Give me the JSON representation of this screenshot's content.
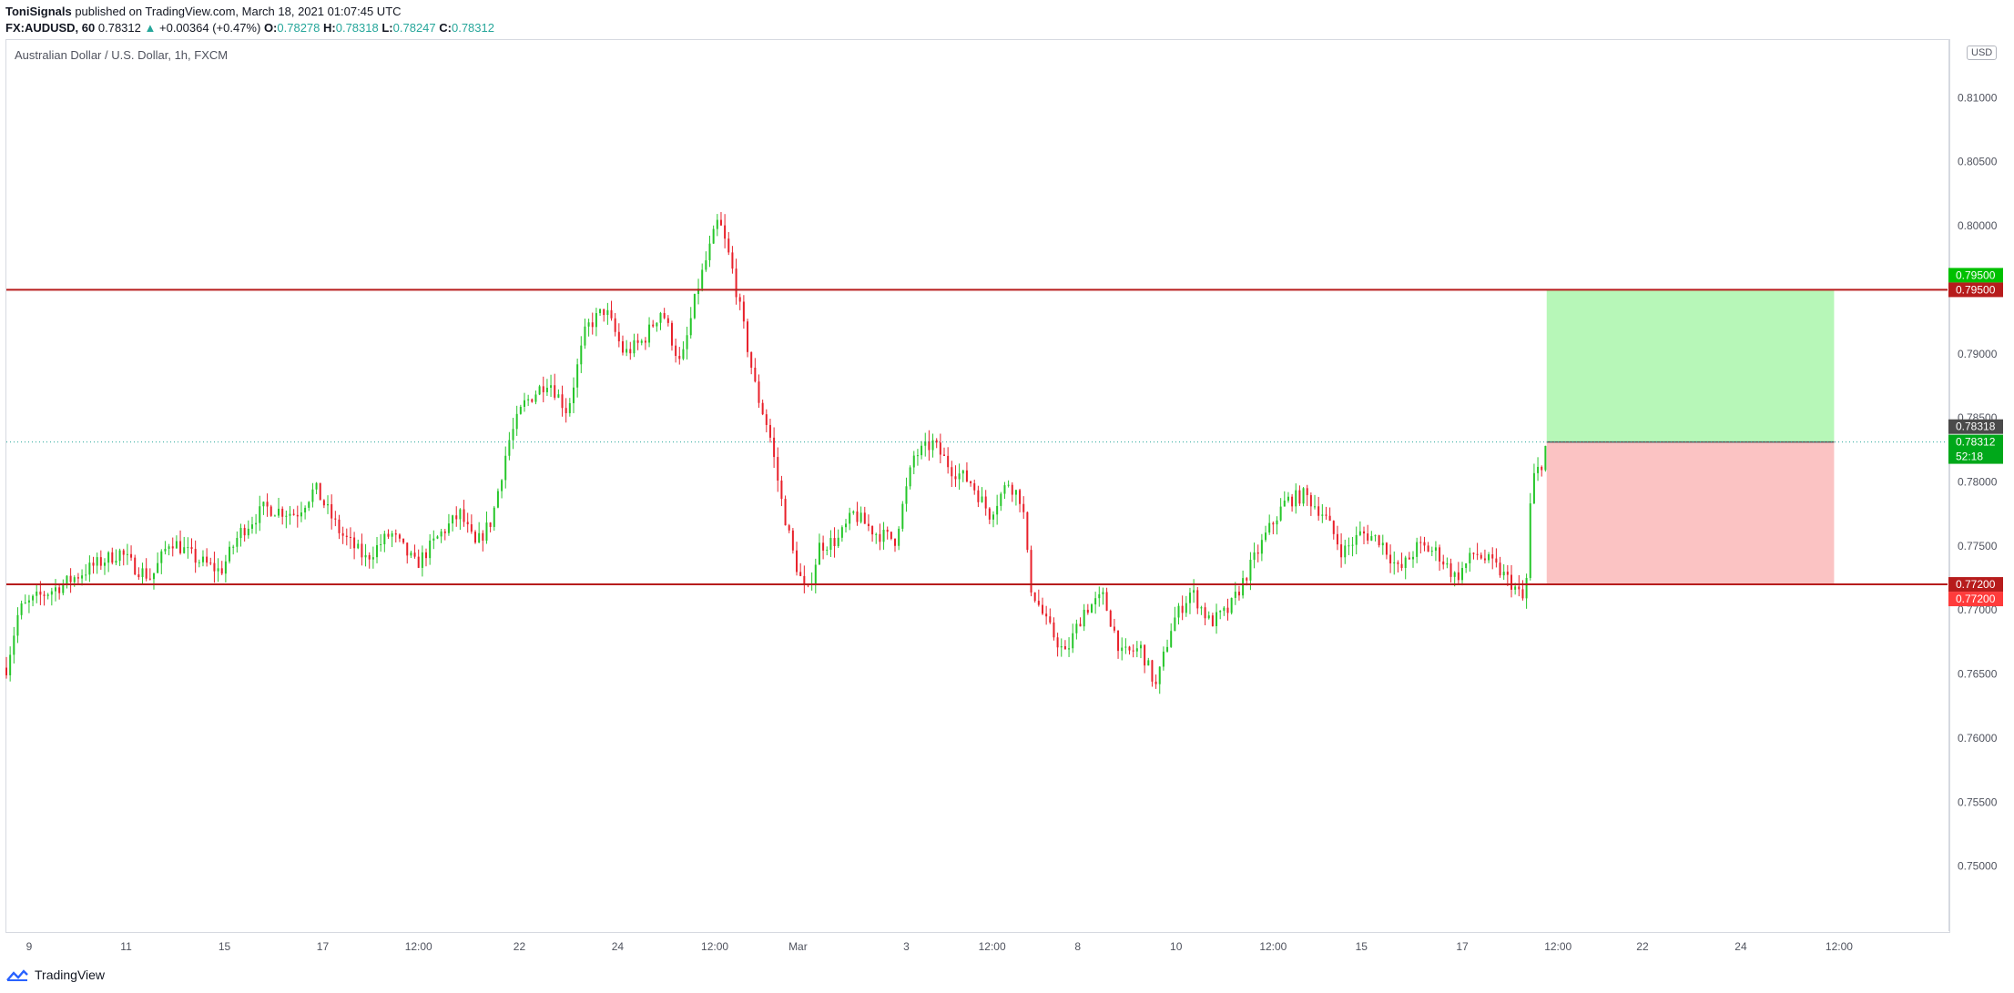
{
  "header": {
    "user": "ToniSignals",
    "published": " published on TradingView.com, March 18, 2021 01:07:45 UTC",
    "symbol": "FX:AUDUSD, 60",
    "last": "0.78312",
    "change": "+0.00364 (+0.47%)",
    "o_label": "O:",
    "o_val": "0.78278",
    "h_label": "H:",
    "h_val": "0.78318",
    "l_label": "L:",
    "l_val": "0.78247",
    "c_label": "C:",
    "c_val": "0.78312"
  },
  "chart_title": "Australian Dollar / U.S. Dollar, 1h, FXCM",
  "currency_button": "USD",
  "footer": {
    "brand": "TradingView"
  },
  "colors": {
    "up": "#26c62a",
    "down": "#e8202a",
    "line": "#b71c1c",
    "target_zone": "#b7f7b8",
    "stop_zone": "#fbc3c3"
  },
  "chart_data": {
    "type": "candlestick",
    "title": "Australian Dollar / U.S. Dollar, 1h, FXCM",
    "ylim": [
      0.745,
      0.8145
    ],
    "y_ticks": [
      "0.81000",
      "0.80500",
      "0.80000",
      "0.79500",
      "0.79000",
      "0.78500",
      "0.78000",
      "0.77500",
      "0.77000",
      "0.76500",
      "0.76000",
      "0.75500",
      "0.75000"
    ],
    "y_tick_values": [
      0.81,
      0.805,
      0.8,
      0.795,
      0.79,
      0.785,
      0.78,
      0.775,
      0.77,
      0.765,
      0.76,
      0.755,
      0.75
    ],
    "x_ticks": [
      "9",
      "11",
      "15",
      "17",
      "12:00",
      "22",
      "24",
      "12:00",
      "Mar",
      "3",
      "12:00",
      "8",
      "10",
      "12:00",
      "15",
      "17",
      "12:00",
      "22",
      "24",
      "12:00"
    ],
    "x_tick_index": [
      18,
      95,
      173,
      251,
      327,
      407,
      485,
      562,
      628,
      714,
      782,
      850,
      928,
      1005,
      1075,
      1155,
      1231,
      1298,
      1376,
      1454
    ],
    "price_path": [
      [
        0,
        0.7655
      ],
      [
        10,
        0.77
      ],
      [
        25,
        0.771
      ],
      [
        45,
        0.772
      ],
      [
        70,
        0.7735
      ],
      [
        90,
        0.7745
      ],
      [
        100,
        0.7735
      ],
      [
        115,
        0.7725
      ],
      [
        130,
        0.7755
      ],
      [
        150,
        0.774
      ],
      [
        170,
        0.773
      ],
      [
        185,
        0.776
      ],
      [
        205,
        0.778
      ],
      [
        230,
        0.7775
      ],
      [
        245,
        0.7795
      ],
      [
        265,
        0.776
      ],
      [
        285,
        0.774
      ],
      [
        305,
        0.776
      ],
      [
        325,
        0.7735
      ],
      [
        345,
        0.776
      ],
      [
        360,
        0.7775
      ],
      [
        372,
        0.775
      ],
      [
        385,
        0.777
      ],
      [
        398,
        0.783
      ],
      [
        410,
        0.786
      ],
      [
        430,
        0.788
      ],
      [
        445,
        0.7855
      ],
      [
        460,
        0.792
      ],
      [
        475,
        0.7935
      ],
      [
        490,
        0.79
      ],
      [
        505,
        0.791
      ],
      [
        520,
        0.7935
      ],
      [
        535,
        0.789
      ],
      [
        548,
        0.795
      ],
      [
        565,
        0.8005
      ],
      [
        575,
        0.797
      ],
      [
        585,
        0.792
      ],
      [
        595,
        0.787
      ],
      [
        605,
        0.784
      ],
      [
        615,
        0.7785
      ],
      [
        625,
        0.774
      ],
      [
        635,
        0.771
      ],
      [
        645,
        0.775
      ],
      [
        660,
        0.7755
      ],
      [
        672,
        0.7775
      ],
      [
        690,
        0.776
      ],
      [
        705,
        0.7755
      ],
      [
        720,
        0.782
      ],
      [
        735,
        0.783
      ],
      [
        750,
        0.781
      ],
      [
        765,
        0.78
      ],
      [
        780,
        0.7775
      ],
      [
        795,
        0.78
      ],
      [
        806,
        0.7785
      ],
      [
        812,
        0.772
      ],
      [
        825,
        0.769
      ],
      [
        840,
        0.7665
      ],
      [
        855,
        0.77
      ],
      [
        870,
        0.771
      ],
      [
        885,
        0.7665
      ],
      [
        900,
        0.767
      ],
      [
        912,
        0.764
      ],
      [
        925,
        0.769
      ],
      [
        940,
        0.7715
      ],
      [
        955,
        0.769
      ],
      [
        970,
        0.77
      ],
      [
        985,
        0.773
      ],
      [
        1000,
        0.776
      ],
      [
        1015,
        0.7785
      ],
      [
        1030,
        0.779
      ],
      [
        1045,
        0.7775
      ],
      [
        1060,
        0.7745
      ],
      [
        1075,
        0.776
      ],
      [
        1090,
        0.7755
      ],
      [
        1105,
        0.773
      ],
      [
        1120,
        0.775
      ],
      [
        1135,
        0.7745
      ],
      [
        1150,
        0.7725
      ],
      [
        1165,
        0.7745
      ],
      [
        1180,
        0.7735
      ],
      [
        1195,
        0.772
      ],
      [
        1205,
        0.7705
      ],
      [
        1210,
        0.78
      ],
      [
        1218,
        0.7815
      ],
      [
        1222,
        0.7831
      ]
    ],
    "levels": [
      {
        "price": 0.795,
        "label": "0.79500",
        "style": "line"
      },
      {
        "price": 0.772,
        "label": "0.77200",
        "style": "line"
      }
    ],
    "last_price": {
      "price": 0.78312,
      "label": "0.78312",
      "timer": "52:18"
    },
    "high_marker": {
      "price": 0.78318,
      "label": "0.78318"
    },
    "target_marker": {
      "label": "0.79500"
    },
    "stop_marker": {
      "label": "0.77200"
    },
    "position": {
      "entry": 0.78312,
      "target": 0.795,
      "stop": 0.772,
      "start_index": 1222,
      "end_index": 1450
    }
  }
}
